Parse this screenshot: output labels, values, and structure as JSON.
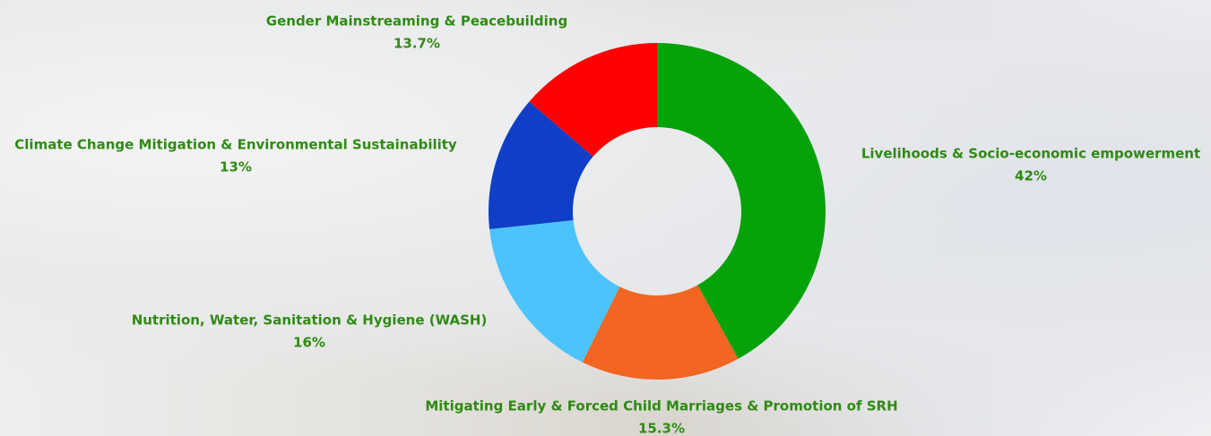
{
  "chart_data": {
    "type": "donut",
    "categories": [
      "Livelihoods & Socio-economic empowerment",
      "Mitigating Early & Forced Child Marriages & Promotion of SRH",
      "Nutrition, Water, Sanitation & Hygiene (WASH)",
      "Climate Change Mitigation & Environmental Sustainability",
      "Gender Mainstreaming & Peacebuilding"
    ],
    "values": [
      42,
      15.3,
      16,
      13,
      13.7
    ],
    "value_labels": [
      "42%",
      "15.3%",
      "16%",
      "13%",
      "13.7%"
    ],
    "colors": [
      "#06a20a",
      "#f26522",
      "#4dc3fb",
      "#0e3fc6",
      "#ff0000"
    ]
  }
}
